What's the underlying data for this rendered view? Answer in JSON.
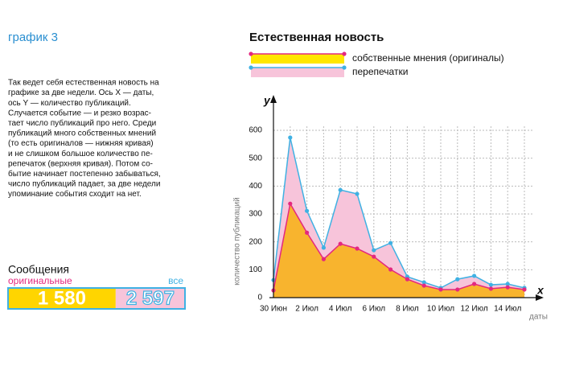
{
  "header": {
    "label": "график 3"
  },
  "description": [
    "Так ведет себя естественная новость на",
    "графике за две недели. Ось X  — даты,",
    "ось Y — количество публикаций.",
    "Случается событие — и резко возрас-",
    "тает число публикаций про него. Среди",
    "публикаций много собственных мнений",
    "(то есть оригиналов — нижняя кривая)",
    "и не слишком большое количество пе-",
    "репечаток (верхняя кривая). Потом со-",
    "бытие начинает постепенно забываться,",
    "число публикаций падает, за две недели",
    "упоминание события сходит на нет."
  ],
  "messages": {
    "title": "Сообщения",
    "original_label": "оригинальные",
    "all_label": "все",
    "original": "1 580",
    "all": "2 597"
  },
  "chart_data": {
    "type": "area",
    "title": "Естественная новость",
    "x_axis_letter": "x",
    "y_axis_letter": "y",
    "x_label": "даты",
    "y_label": "количество публикаций",
    "categories": [
      "30 Июн",
      null,
      "2 Июл",
      null,
      "4 Июл",
      null,
      "6 Июл",
      null,
      "8 Июл",
      null,
      "10 Июл",
      null,
      "12 Июл",
      null,
      "14 Июл",
      null
    ],
    "ylim": [
      0,
      600
    ],
    "yticks": [
      0,
      100,
      200,
      300,
      400,
      500,
      600
    ],
    "grid": true,
    "series": [
      {
        "name": "перепечатки",
        "color": "#f7c4da",
        "line_color": "#3fb1e3",
        "values": [
          63,
          574,
          311,
          179,
          386,
          372,
          170,
          196,
          75,
          55,
          35,
          66,
          78,
          46,
          49,
          35
        ]
      },
      {
        "name": "собственные мнения (оригиналы)",
        "color": "#f8b42e",
        "line_color": "#e4287f",
        "values": [
          26,
          337,
          233,
          138,
          193,
          176,
          147,
          101,
          66,
          43,
          29,
          29,
          49,
          32,
          37,
          29
        ]
      }
    ]
  }
}
